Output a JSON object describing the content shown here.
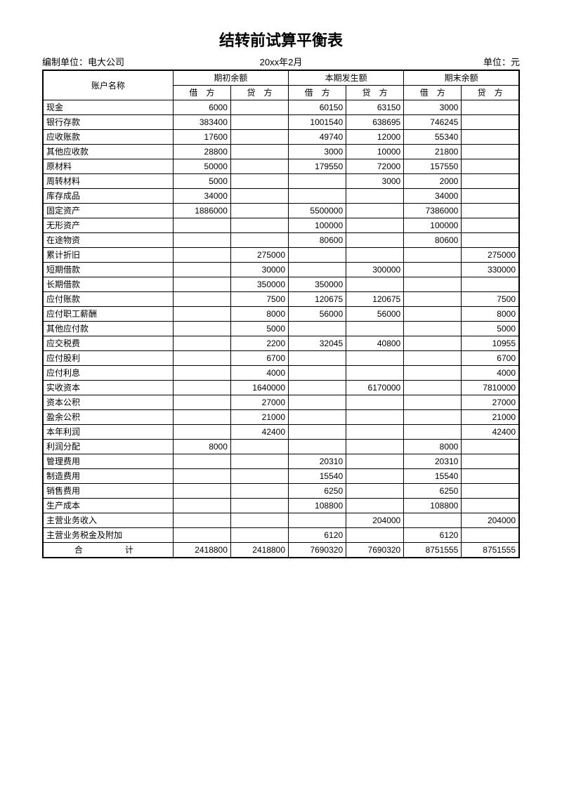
{
  "title": "结转前试算平衡表",
  "meta": {
    "left": "编制单位：电大公司",
    "center": "20xx年2月",
    "right": "单位：元"
  },
  "headers": {
    "account": "账户名称",
    "group1": "期初余额",
    "group2": "本期发生额",
    "group3": "期末余额",
    "debit": "借　方",
    "credit": "贷　方"
  },
  "rows": [
    {
      "name": "现金",
      "d1": "6000",
      "c1": "",
      "d2": "60150",
      "c2": "63150",
      "d3": "3000",
      "c3": ""
    },
    {
      "name": "银行存款",
      "d1": "383400",
      "c1": "",
      "d2": "1001540",
      "c2": "638695",
      "d3": "746245",
      "c3": ""
    },
    {
      "name": "应收账款",
      "d1": "17600",
      "c1": "",
      "d2": "49740",
      "c2": "12000",
      "d3": "55340",
      "c3": ""
    },
    {
      "name": "其他应收款",
      "d1": "28800",
      "c1": "",
      "d2": "3000",
      "c2": "10000",
      "d3": "21800",
      "c3": ""
    },
    {
      "name": "原材料",
      "d1": "50000",
      "c1": "",
      "d2": "179550",
      "c2": "72000",
      "d3": "157550",
      "c3": ""
    },
    {
      "name": "周转材料",
      "d1": "5000",
      "c1": "",
      "d2": "",
      "c2": "3000",
      "d3": "2000",
      "c3": ""
    },
    {
      "name": "库存成品",
      "d1": "34000",
      "c1": "",
      "d2": "",
      "c2": "",
      "d3": "34000",
      "c3": ""
    },
    {
      "name": "固定资产",
      "d1": "1886000",
      "c1": "",
      "d2": "5500000",
      "c2": "",
      "d3": "7386000",
      "c3": ""
    },
    {
      "name": "无形资产",
      "d1": "",
      "c1": "",
      "d2": "100000",
      "c2": "",
      "d3": "100000",
      "c3": ""
    },
    {
      "name": "在途物资",
      "d1": "",
      "c1": "",
      "d2": "80600",
      "c2": "",
      "d3": "80600",
      "c3": ""
    },
    {
      "name": "累计折旧",
      "d1": "",
      "c1": "275000",
      "d2": "",
      "c2": "",
      "d3": "",
      "c3": "275000"
    },
    {
      "name": "短期借款",
      "d1": "",
      "c1": "30000",
      "d2": "",
      "c2": "300000",
      "d3": "",
      "c3": "330000"
    },
    {
      "name": "长期借款",
      "d1": "",
      "c1": "350000",
      "d2": "350000",
      "c2": "",
      "d3": "",
      "c3": ""
    },
    {
      "name": "应付账款",
      "d1": "",
      "c1": "7500",
      "d2": "120675",
      "c2": "120675",
      "d3": "",
      "c3": "7500"
    },
    {
      "name": "应付职工薪酬",
      "d1": "",
      "c1": "8000",
      "d2": "56000",
      "c2": "56000",
      "d3": "",
      "c3": "8000"
    },
    {
      "name": "其他应付款",
      "d1": "",
      "c1": "5000",
      "d2": "",
      "c2": "",
      "d3": "",
      "c3": "5000"
    },
    {
      "name": "应交税费",
      "d1": "",
      "c1": "2200",
      "d2": "32045",
      "c2": "40800",
      "d3": "",
      "c3": "10955"
    },
    {
      "name": "应付股利",
      "d1": "",
      "c1": "6700",
      "d2": "",
      "c2": "",
      "d3": "",
      "c3": "6700"
    },
    {
      "name": "应付利息",
      "d1": "",
      "c1": "4000",
      "d2": "",
      "c2": "",
      "d3": "",
      "c3": "4000"
    },
    {
      "name": "实收资本",
      "d1": "",
      "c1": "1640000",
      "d2": "",
      "c2": "6170000",
      "d3": "",
      "c3": "7810000"
    },
    {
      "name": "资本公积",
      "d1": "",
      "c1": "27000",
      "d2": "",
      "c2": "",
      "d3": "",
      "c3": "27000"
    },
    {
      "name": "盈余公积",
      "d1": "",
      "c1": "21000",
      "d2": "",
      "c2": "",
      "d3": "",
      "c3": "21000"
    },
    {
      "name": "本年利润",
      "d1": "",
      "c1": "42400",
      "d2": "",
      "c2": "",
      "d3": "",
      "c3": "42400"
    },
    {
      "name": "利润分配",
      "d1": "8000",
      "c1": "",
      "d2": "",
      "c2": "",
      "d3": "8000",
      "c3": ""
    },
    {
      "name": "管理费用",
      "d1": "",
      "c1": "",
      "d2": "20310",
      "c2": "",
      "d3": "20310",
      "c3": ""
    },
    {
      "name": "制造费用",
      "d1": "",
      "c1": "",
      "d2": "15540",
      "c2": "",
      "d3": "15540",
      "c3": ""
    },
    {
      "name": "销售费用",
      "d1": "",
      "c1": "",
      "d2": "6250",
      "c2": "",
      "d3": "6250",
      "c3": ""
    },
    {
      "name": "生产成本",
      "d1": "",
      "c1": "",
      "d2": "108800",
      "c2": "",
      "d3": "108800",
      "c3": ""
    },
    {
      "name": "主营业务收入",
      "d1": "",
      "c1": "",
      "d2": "",
      "c2": "204000",
      "d3": "",
      "c3": "204000"
    },
    {
      "name": "主营业务税金及附加",
      "d1": "",
      "c1": "",
      "d2": "6120",
      "c2": "",
      "d3": "6120",
      "c3": ""
    }
  ],
  "total": {
    "name": "合　　计",
    "d1": "2418800",
    "c1": "2418800",
    "d2": "7690320",
    "c2": "7690320",
    "d3": "8751555",
    "c3": "8751555"
  }
}
